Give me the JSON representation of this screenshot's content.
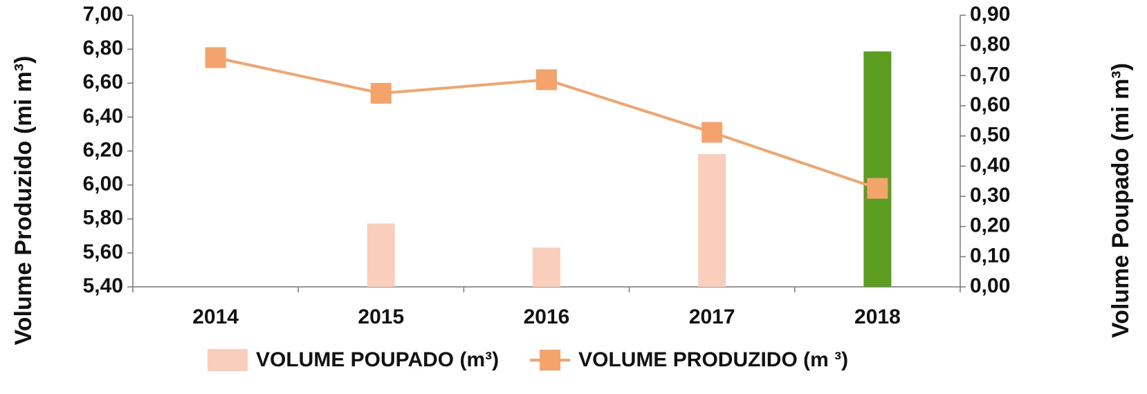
{
  "chart_data": {
    "type": "bar-line",
    "categories": [
      "2014",
      "2015",
      "2016",
      "2017",
      "2018"
    ],
    "y_label": "Volume Produzido (mi m³)",
    "y2_label": "Volume Poupado (mi m³)",
    "series": [
      {
        "name": "VOLUME POUPADO (m³)",
        "type": "bar",
        "axis": "y2",
        "color": "#f9cfbc",
        "colors": [
          "#f9cfbc",
          "#f9cfbc",
          "#f9cfbc",
          "#f9cfbc",
          "#5b9e1f"
        ],
        "values": [
          0,
          0.21,
          0.13,
          0.44,
          0.78
        ]
      },
      {
        "name": "VOLUME PRODUZIDO (m ³)",
        "type": "line",
        "axis": "y",
        "color": "#f4a46b",
        "values": [
          6.75,
          6.54,
          6.62,
          6.31,
          5.98
        ]
      }
    ],
    "ylim": [
      5.4,
      7.0
    ],
    "yticks": [
      {
        "value": 5.4,
        "label": "5,40"
      },
      {
        "value": 5.6,
        "label": "5,60"
      },
      {
        "value": 5.8,
        "label": "5,80"
      },
      {
        "value": 6.0,
        "label": "6,00"
      },
      {
        "value": 6.2,
        "label": "6,20"
      },
      {
        "value": 6.4,
        "label": "6,40"
      },
      {
        "value": 6.6,
        "label": "6,60"
      },
      {
        "value": 6.8,
        "label": "6,80"
      },
      {
        "value": 7.0,
        "label": "7,00"
      }
    ],
    "y2lim": [
      0,
      0.9
    ],
    "y2ticks": [
      {
        "value": 0,
        "label": "0,00"
      },
      {
        "value": 0.1,
        "label": "0,10"
      },
      {
        "value": 0.2,
        "label": "0,20"
      },
      {
        "value": 0.3,
        "label": "0,30"
      },
      {
        "value": 0.4,
        "label": "0,40"
      },
      {
        "value": 0.5,
        "label": "0,50"
      },
      {
        "value": 0.6,
        "label": "0,60"
      },
      {
        "value": 0.7,
        "label": "0,70"
      },
      {
        "value": 0.8,
        "label": "0,80"
      },
      {
        "value": 0.9,
        "label": "0,90"
      }
    ],
    "legend": "bottom"
  }
}
